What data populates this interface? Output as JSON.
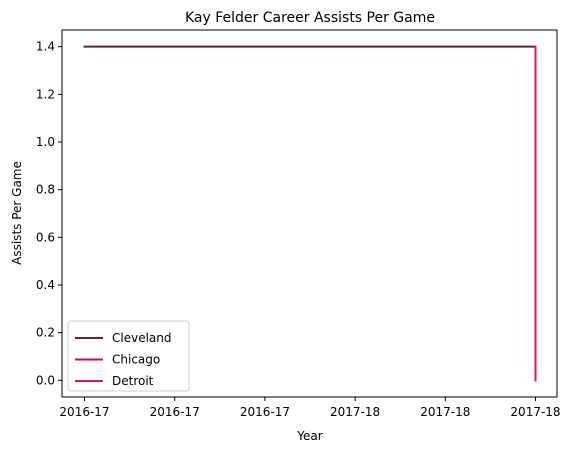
{
  "chart_data": {
    "type": "line",
    "title": "Kay Felder Career Assists Per Game",
    "xlabel": "Year",
    "ylabel": "Assists Per Game",
    "x_tick_labels": [
      "2016-17",
      "2016-17",
      "2016-17",
      "2017-18",
      "2017-18",
      "2017-18"
    ],
    "x_range": [
      0,
      1
    ],
    "ylim": [
      -0.07,
      1.47
    ],
    "y_ticks": [
      0.0,
      0.2,
      0.4,
      0.6,
      0.8,
      1.0,
      1.2,
      1.4
    ],
    "y_tick_labels": [
      "0.0",
      "0.2",
      "0.4",
      "0.6",
      "0.8",
      "1.0",
      "1.2",
      "1.4"
    ],
    "grid": false,
    "legend_position": "lower-left",
    "series": [
      {
        "name": "Cleveland",
        "color": "#6b2038",
        "points": [
          [
            0,
            1.4
          ],
          [
            1,
            1.4
          ]
        ]
      },
      {
        "name": "Chicago",
        "color": "#c4123e",
        "points": [
          [
            1,
            1.4
          ],
          [
            1,
            0.0
          ]
        ]
      },
      {
        "name": "Detroit",
        "color": "#d9184b",
        "points": [
          [
            1,
            1.4
          ],
          [
            1,
            0.0
          ]
        ]
      }
    ]
  }
}
